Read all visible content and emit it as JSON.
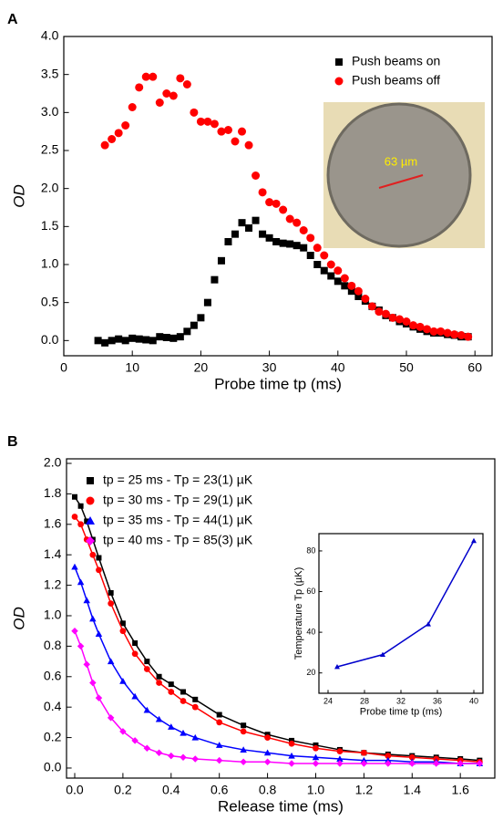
{
  "chart_data": [
    {
      "type": "scatter",
      "panel": "A",
      "x_label": "Probe time tp (ms)",
      "y_label": "OD",
      "xlim": [
        0,
        62.5
      ],
      "ylim": [
        -0.2,
        4.0
      ],
      "xticks": [
        0,
        10,
        20,
        30,
        40,
        50,
        60
      ],
      "yticks": [
        {
          "value": 0,
          "label": "0.0"
        },
        0.5,
        {
          "value": 1,
          "label": "1.0"
        },
        1.5,
        {
          "value": 2,
          "label": "2.0"
        },
        2.5,
        {
          "value": 3,
          "label": "3.0"
        },
        3.5,
        {
          "value": 4,
          "label": "4.0"
        }
      ],
      "legend": "upper right",
      "line": false,
      "inset_label": "63 µm",
      "series": [
        {
          "name": "Push beams on",
          "color": "#000000",
          "marker": "square",
          "x": [
            5,
            6,
            7,
            8,
            9,
            10,
            11,
            12,
            13,
            14,
            15,
            16,
            17,
            18,
            19,
            20,
            21,
            22,
            23,
            24,
            25,
            26,
            27,
            28,
            29,
            30,
            31,
            32,
            33,
            34,
            35,
            36,
            37,
            38,
            39,
            40,
            41,
            42,
            43,
            44,
            45,
            46,
            47,
            48,
            49,
            50,
            51,
            52,
            53,
            54,
            55,
            56,
            57,
            58,
            59
          ],
          "values": [
            0.0,
            -0.03,
            0.0,
            0.02,
            0.0,
            0.03,
            0.02,
            0.01,
            0.0,
            0.05,
            0.04,
            0.03,
            0.05,
            0.12,
            0.2,
            0.3,
            0.5,
            0.8,
            1.05,
            1.3,
            1.4,
            1.55,
            1.48,
            1.58,
            1.4,
            1.35,
            1.3,
            1.28,
            1.27,
            1.25,
            1.22,
            1.12,
            1.0,
            0.92,
            0.85,
            0.78,
            0.72,
            0.65,
            0.58,
            0.52,
            0.45,
            0.4,
            0.33,
            0.3,
            0.25,
            0.22,
            0.18,
            0.15,
            0.12,
            0.1,
            0.1,
            0.08,
            0.07,
            0.05,
            0.05
          ]
        },
        {
          "name": "Push beams off",
          "color": "#ff0000",
          "marker": "circle",
          "x": [
            6,
            7,
            8,
            9,
            10,
            11,
            12,
            13,
            14,
            15,
            16,
            17,
            18,
            19,
            20,
            21,
            22,
            23,
            24,
            25,
            26,
            27,
            28,
            29,
            30,
            31,
            32,
            33,
            34,
            35,
            36,
            37,
            38,
            39,
            40,
            41,
            42,
            43,
            44,
            45,
            46,
            47,
            48,
            49,
            50,
            51,
            52,
            53,
            54,
            55,
            56,
            57,
            58,
            59
          ],
          "values": [
            2.57,
            2.65,
            2.73,
            2.83,
            3.07,
            3.33,
            3.47,
            3.47,
            3.13,
            3.25,
            3.22,
            3.45,
            3.37,
            3.0,
            2.88,
            2.88,
            2.85,
            2.75,
            2.77,
            2.62,
            2.75,
            2.57,
            2.17,
            1.95,
            1.82,
            1.8,
            1.72,
            1.6,
            1.55,
            1.45,
            1.35,
            1.22,
            1.12,
            1.0,
            0.92,
            0.82,
            0.72,
            0.65,
            0.55,
            0.45,
            0.38,
            0.35,
            0.3,
            0.28,
            0.25,
            0.2,
            0.18,
            0.15,
            0.12,
            0.12,
            0.1,
            0.08,
            0.07,
            0.05
          ]
        }
      ]
    },
    {
      "type": "scatter",
      "panel": "B",
      "x_label": "Release time (ms)",
      "y_label": "OD",
      "xlim": [
        -0.034,
        1.743
      ],
      "ylim": [
        -0.066,
        2.03
      ],
      "xticks": [
        {
          "value": 0,
          "label": "0.0"
        },
        0.2,
        0.4,
        0.6,
        0.8,
        {
          "value": 1,
          "label": "1.0"
        },
        1.2,
        1.4,
        1.6
      ],
      "yticks": [
        {
          "value": 0,
          "label": "0.0"
        },
        0.2,
        0.4,
        0.6,
        0.8,
        {
          "value": 1,
          "label": "1.0"
        },
        1.2,
        1.4,
        1.6,
        1.8,
        {
          "value": 2,
          "label": "2.0"
        }
      ],
      "legend": "upper left",
      "line": true,
      "x": [
        0,
        0.025,
        0.05,
        0.075,
        0.1,
        0.15,
        0.2,
        0.25,
        0.3,
        0.35,
        0.4,
        0.45,
        0.5,
        0.6,
        0.7,
        0.8,
        0.9,
        1.0,
        1.1,
        1.2,
        1.3,
        1.4,
        1.5,
        1.6,
        1.68
      ],
      "series": [
        {
          "name": "tp = 25 ms - Tp = 23(1) µK",
          "color": "#000000",
          "marker": "square",
          "values": [
            1.78,
            1.72,
            1.62,
            1.5,
            1.38,
            1.15,
            0.95,
            0.82,
            0.7,
            0.6,
            0.55,
            0.5,
            0.45,
            0.35,
            0.28,
            0.22,
            0.18,
            0.15,
            0.12,
            0.1,
            0.09,
            0.08,
            0.07,
            0.06,
            0.05
          ]
        },
        {
          "name": "tp = 30 ms - Tp = 29(1) µK",
          "color": "#ff0000",
          "marker": "circle",
          "values": [
            1.65,
            1.6,
            1.5,
            1.4,
            1.3,
            1.08,
            0.9,
            0.75,
            0.65,
            0.56,
            0.5,
            0.44,
            0.4,
            0.3,
            0.24,
            0.2,
            0.16,
            0.13,
            0.11,
            0.1,
            0.08,
            0.07,
            0.06,
            0.05,
            0.04
          ]
        },
        {
          "name": "tp = 35 ms - Tp = 44(1) µK",
          "color": "#0000ff",
          "marker": "triangle",
          "values": [
            1.32,
            1.22,
            1.1,
            0.98,
            0.88,
            0.7,
            0.57,
            0.47,
            0.38,
            0.32,
            0.27,
            0.23,
            0.2,
            0.15,
            0.12,
            0.1,
            0.08,
            0.07,
            0.06,
            0.05,
            0.05,
            0.04,
            0.04,
            0.03,
            0.03
          ]
        },
        {
          "name": "tp = 40 ms - Tp = 85(3) µK",
          "color": "#ff00ff",
          "marker": "diamond",
          "values": [
            0.9,
            0.8,
            0.68,
            0.56,
            0.46,
            0.33,
            0.24,
            0.18,
            0.13,
            0.1,
            0.08,
            0.07,
            0.06,
            0.05,
            0.04,
            0.04,
            0.03,
            0.03,
            0.03,
            0.03,
            0.03,
            0.03,
            0.03,
            0.03,
            0.03
          ]
        }
      ]
    },
    {
      "type": "line",
      "x_label": "Probe time tp (ms)",
      "y_label": "Temperature Tp (µK)",
      "xlim": [
        23,
        41
      ],
      "ylim": [
        10,
        88.5
      ],
      "xticks": [
        24,
        28,
        32,
        36,
        40
      ],
      "yticks": [
        20,
        40,
        60,
        80
      ],
      "line": true,
      "x": [
        25,
        30,
        35,
        40
      ],
      "series": [
        {
          "color": "#0000cc",
          "marker": "triangle",
          "values": [
            23,
            29,
            44,
            85
          ]
        }
      ]
    }
  ]
}
